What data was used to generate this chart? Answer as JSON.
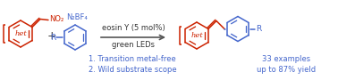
{
  "bg_color": "#ffffff",
  "red_color": "#cc2200",
  "blue_color": "#4466cc",
  "black_color": "#333333",
  "arrow_color": "#555555",
  "reagents_top": "eosin Y (5 mol%)",
  "reagents_bot": "green LEDs",
  "diazonium": "N₂BF₄",
  "condition1": "1. Transition metal-free",
  "condition2": "2. Wild substrate scope",
  "result1": "33 examples",
  "result2": "up to 87% yield",
  "fontsize_reagent": 6.0,
  "fontsize_cond": 6.0,
  "fontsize_label": 6.5
}
